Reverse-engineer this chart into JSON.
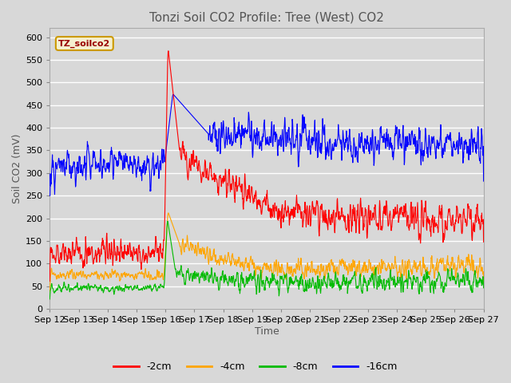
{
  "title": "Tonzi Soil CO2 Profile: Tree (West) CO2",
  "ylabel": "Soil CO2 (mV)",
  "xlabel": "Time",
  "ylim": [
    0,
    620
  ],
  "yticks": [
    0,
    50,
    100,
    150,
    200,
    250,
    300,
    350,
    400,
    450,
    500,
    550,
    600
  ],
  "xtick_labels": [
    "Sep 12",
    "Sep 13",
    "Sep 14",
    "Sep 15",
    "Sep 16",
    "Sep 17",
    "Sep 18",
    "Sep 19",
    "Sep 20",
    "Sep 21",
    "Sep 22",
    "Sep 23",
    "Sep 24",
    "Sep 25",
    "Sep 26",
    "Sep 27"
  ],
  "colors": {
    "-2cm": "#ff0000",
    "-4cm": "#ffa500",
    "-8cm": "#00bb00",
    "-16cm": "#0000ff"
  },
  "legend_label": "TZ_soilco2",
  "legend_box_facecolor": "#f5f0d0",
  "legend_box_edgecolor": "#cc9900",
  "legend_text_color": "#990000",
  "figure_background": "#d8d8d8",
  "axes_background": "#d8d8d8",
  "grid_color": "#ffffff",
  "title_color": "#555555",
  "title_fontsize": 11,
  "axis_label_fontsize": 9,
  "tick_fontsize": 8
}
